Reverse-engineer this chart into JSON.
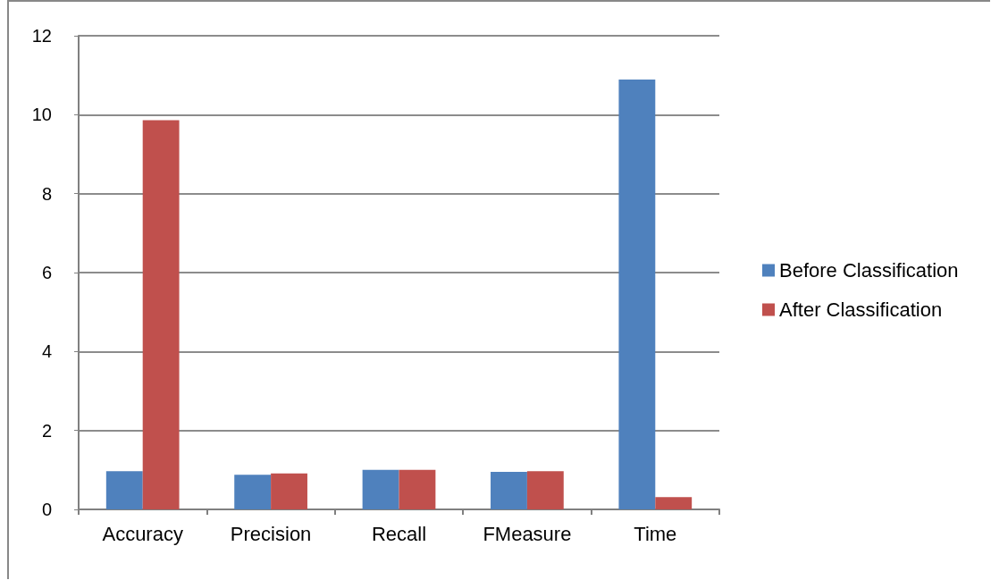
{
  "chart_data": {
    "type": "bar",
    "categories": [
      "Accuracy",
      "Precision",
      "Recall",
      "FMeasure",
      "Time"
    ],
    "series": [
      {
        "name": "Before Classification",
        "color": "#4f81bd",
        "values": [
          0.97,
          0.88,
          1.0,
          0.95,
          10.89
        ]
      },
      {
        "name": "After Classification",
        "color": "#c0504d",
        "values": [
          9.86,
          0.91,
          1.0,
          0.97,
          0.31
        ]
      }
    ],
    "ylim": [
      0,
      12
    ],
    "yticks": [
      0,
      2,
      4,
      6,
      8,
      10,
      12
    ],
    "grid": "y",
    "legend": "right"
  }
}
